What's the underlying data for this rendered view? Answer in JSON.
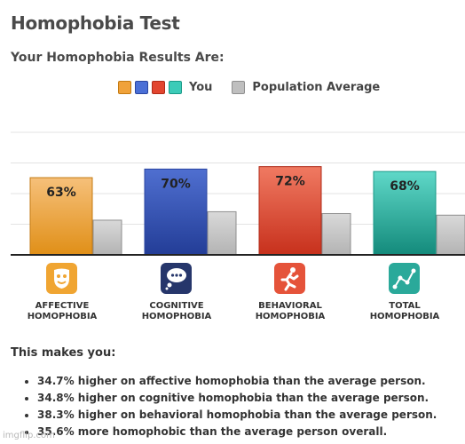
{
  "page": {
    "title": "Homophobia Test",
    "subtitle": "Your Homophobia Results Are:",
    "legend_you": "You",
    "legend_avg": "Population Average",
    "makes_you": "This makes you:",
    "bullets": [
      "34.7% higher on affective homophobia than the average person.",
      "34.8% higher on cognitive homophobia than the average person.",
      "38.3% higher on behavioral homophobia than the average person.",
      "35.6% more homophobic than the average person overall."
    ],
    "watermark": "imgflip.com"
  },
  "categories": [
    {
      "line1": "AFFECTIVE",
      "line2": "HOMOPHOBIA",
      "icon": "mask-icon",
      "icon_color": "#f0a532"
    },
    {
      "line1": "COGNITIVE",
      "line2": "HOMOPHOBIA",
      "icon": "thought-bubble-icon",
      "icon_color": "#26366b"
    },
    {
      "line1": "BEHAVIORAL",
      "line2": "HOMOPHOBIA",
      "icon": "running-person-icon",
      "icon_color": "#e5533a"
    },
    {
      "line1": "TOTAL",
      "line2": "HOMOPHOBIA",
      "icon": "line-graph-icon",
      "icon_color": "#2aa99a"
    }
  ],
  "chart_data": {
    "type": "bar",
    "categories": [
      "AFFECTIVE HOMOPHOBIA",
      "COGNITIVE HOMOPHOBIA",
      "BEHAVIORAL HOMOPHOBIA",
      "TOTAL HOMOPHOBIA"
    ],
    "series": [
      {
        "name": "You",
        "values": [
          63,
          70,
          72,
          68
        ],
        "labels": [
          "63%",
          "70%",
          "72%",
          "68%"
        ],
        "colors": [
          "#f0a23a",
          "#3d5ab8",
          "#e2452f",
          "#28b7a3"
        ]
      },
      {
        "name": "Population Average",
        "values": [
          28.3,
          35.2,
          33.7,
          32.4
        ],
        "colors": [
          "#bfbfbf",
          "#bfbfbf",
          "#bfbfbf",
          "#bfbfbf"
        ]
      }
    ],
    "ylim": [
      0,
      100
    ],
    "grid": true,
    "legend_position": "top"
  }
}
